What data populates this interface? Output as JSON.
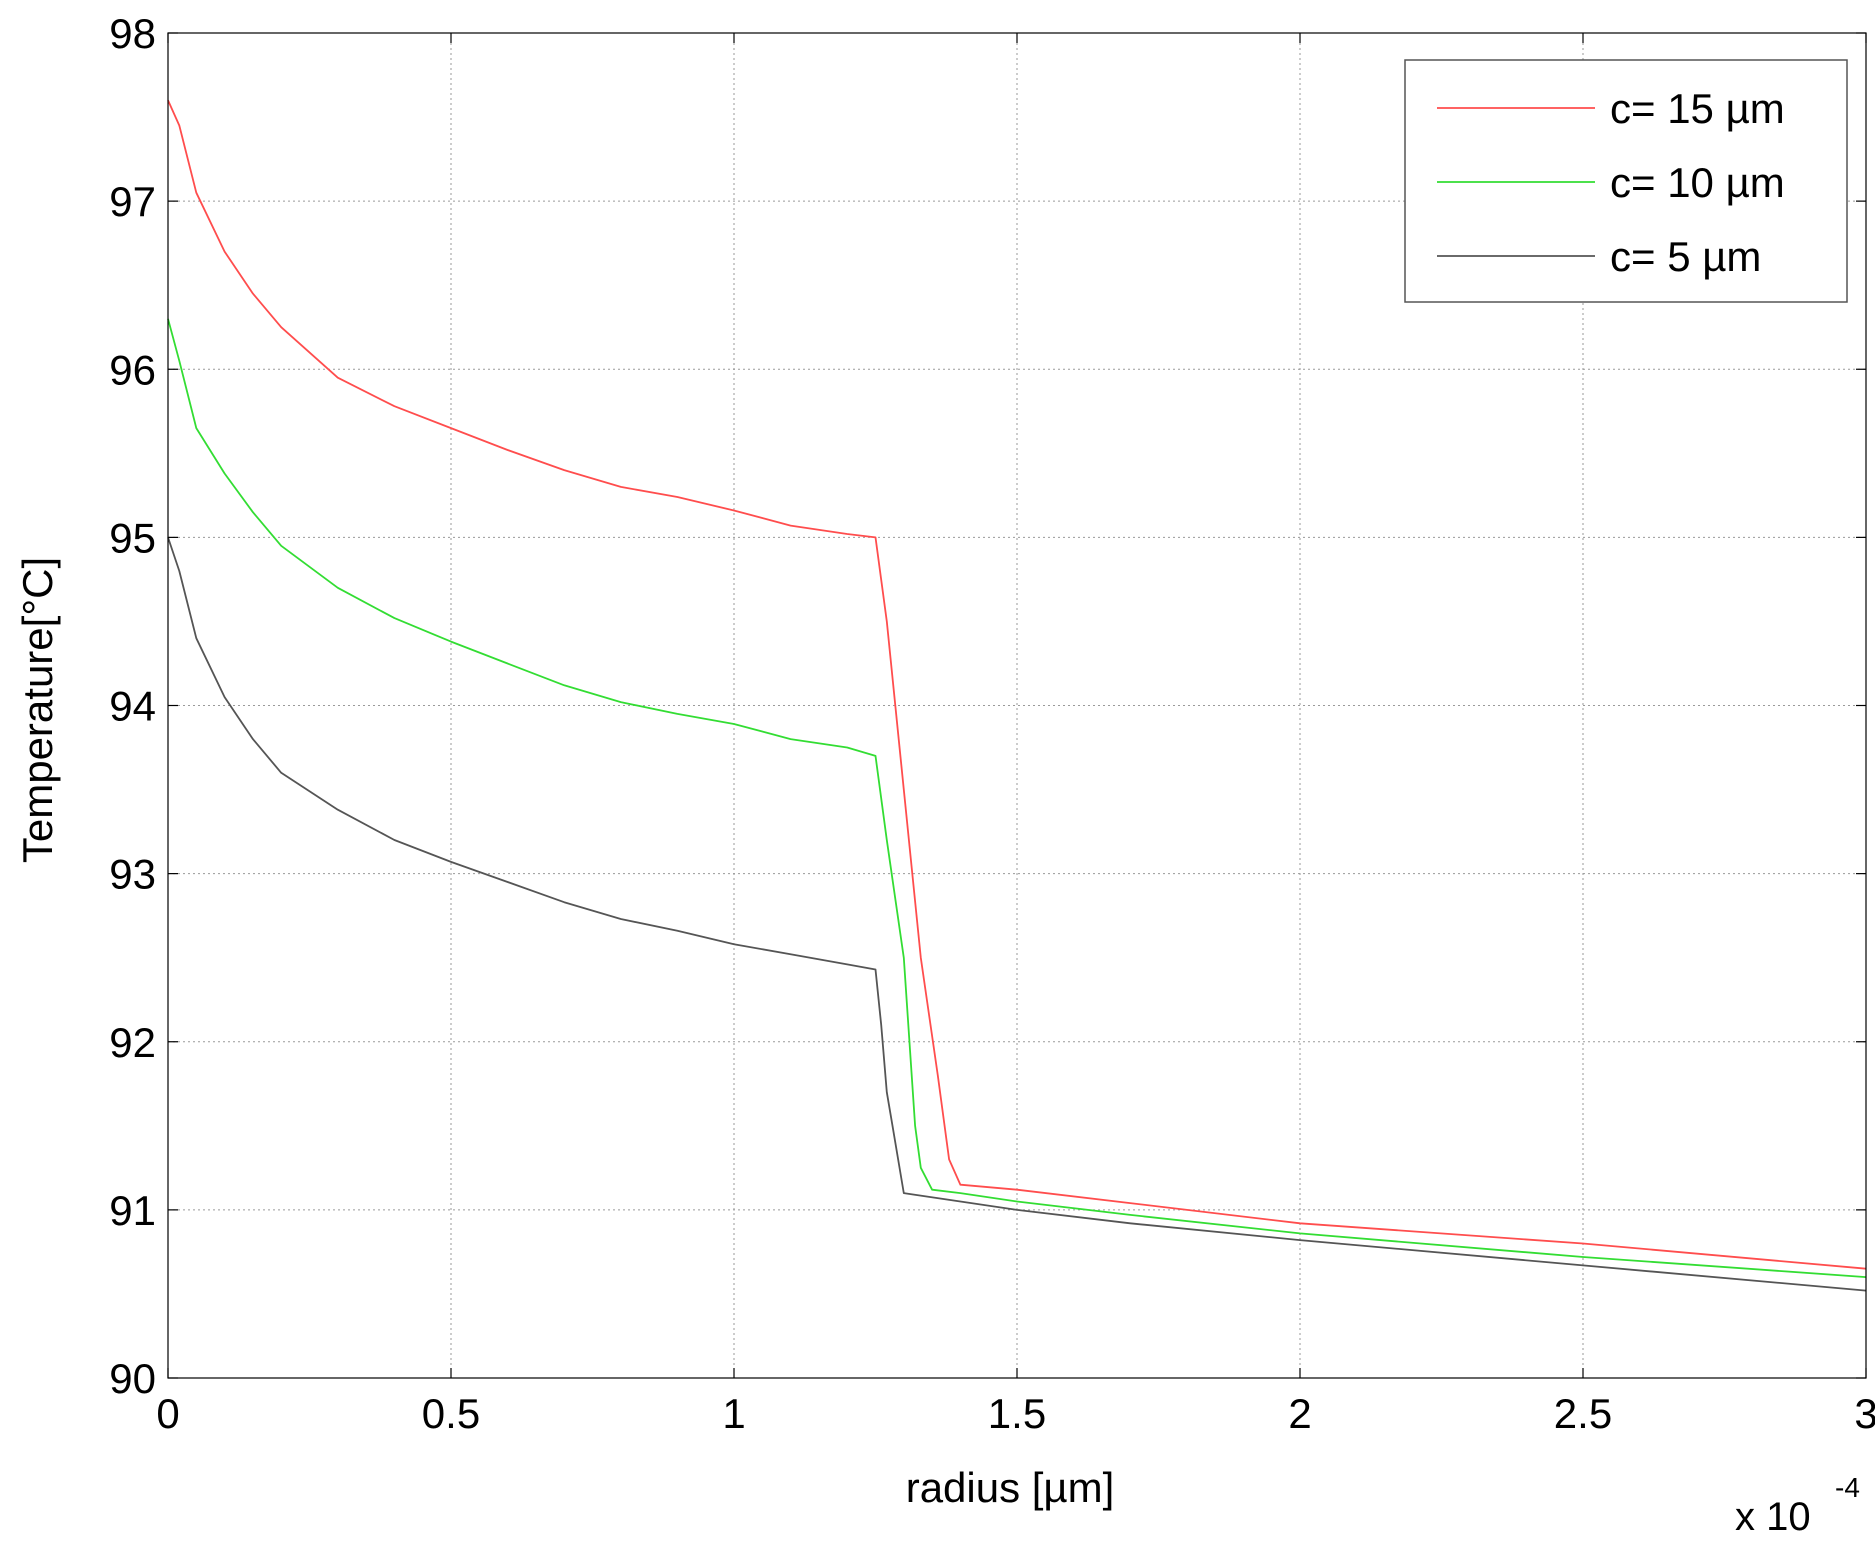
{
  "chart_data": {
    "type": "line",
    "title": "",
    "xlabel": "radius [µm]",
    "ylabel": "Temperature[°C]",
    "x_multiplier_label": {
      "base": "x 10",
      "exponent": "-4"
    },
    "x_tick_labels": [
      "0",
      "0.5",
      "1",
      "1.5",
      "2",
      "2.5",
      "3"
    ],
    "y_tick_labels": [
      "90",
      "91",
      "92",
      "93",
      "94",
      "95",
      "96",
      "97",
      "98"
    ],
    "xlim": [
      0,
      3
    ],
    "ylim": [
      90,
      98
    ],
    "x_ticks": [
      0,
      0.5,
      1,
      1.5,
      2,
      2.5,
      3
    ],
    "y_ticks": [
      90,
      91,
      92,
      93,
      94,
      95,
      96,
      97,
      98
    ],
    "grid": true,
    "legend_position": "top-right",
    "series": [
      {
        "name": "c= 15 µm",
        "color": "#ff4d4d",
        "x": [
          0,
          0.02,
          0.05,
          0.1,
          0.15,
          0.2,
          0.3,
          0.4,
          0.5,
          0.6,
          0.7,
          0.8,
          0.9,
          1.0,
          1.1,
          1.2,
          1.25,
          1.27,
          1.3,
          1.33,
          1.36,
          1.38,
          1.4,
          1.5,
          1.7,
          2.0,
          2.5,
          3.0
        ],
        "y": [
          97.6,
          97.45,
          97.05,
          96.7,
          96.45,
          96.25,
          95.95,
          95.78,
          95.65,
          95.52,
          95.4,
          95.3,
          95.24,
          95.16,
          95.07,
          95.02,
          95.0,
          94.5,
          93.5,
          92.5,
          91.8,
          91.3,
          91.15,
          91.12,
          91.04,
          90.92,
          90.8,
          90.65
        ]
      },
      {
        "name": "c= 10 µm",
        "color": "#33dd33",
        "x": [
          0,
          0.02,
          0.05,
          0.1,
          0.15,
          0.2,
          0.3,
          0.4,
          0.5,
          0.6,
          0.7,
          0.8,
          0.9,
          1.0,
          1.1,
          1.2,
          1.25,
          1.27,
          1.3,
          1.32,
          1.33,
          1.35,
          1.4,
          1.5,
          1.7,
          2.0,
          2.5,
          3.0
        ],
        "y": [
          96.3,
          96.05,
          95.65,
          95.38,
          95.15,
          94.95,
          94.7,
          94.52,
          94.38,
          94.25,
          94.12,
          94.02,
          93.95,
          93.89,
          93.8,
          93.75,
          93.7,
          93.2,
          92.5,
          91.5,
          91.25,
          91.12,
          91.1,
          91.05,
          90.97,
          90.86,
          90.72,
          90.6
        ]
      },
      {
        "name": "c= 5 µm",
        "color": "#555555",
        "x": [
          0,
          0.02,
          0.05,
          0.1,
          0.15,
          0.2,
          0.3,
          0.4,
          0.5,
          0.6,
          0.7,
          0.8,
          0.9,
          1.0,
          1.1,
          1.2,
          1.25,
          1.26,
          1.27,
          1.28,
          1.3,
          1.4,
          1.5,
          1.7,
          2.0,
          2.5,
          3.0
        ],
        "y": [
          95.0,
          94.8,
          94.4,
          94.05,
          93.8,
          93.6,
          93.38,
          93.2,
          93.07,
          92.95,
          92.83,
          92.73,
          92.66,
          92.58,
          92.52,
          92.46,
          92.43,
          92.1,
          91.7,
          91.5,
          91.1,
          91.05,
          91.0,
          90.92,
          90.82,
          90.67,
          90.52
        ]
      }
    ]
  }
}
